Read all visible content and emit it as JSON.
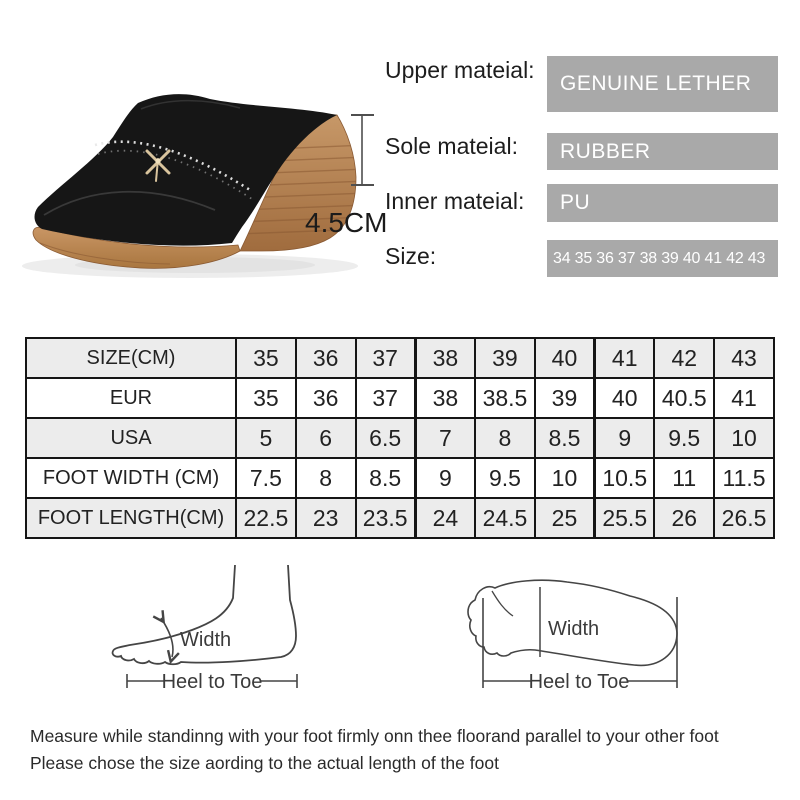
{
  "product_photo": {
    "description": "black wedge slipper with rhinestone ornament",
    "heel_height_label": "4.5CM"
  },
  "specs": {
    "items": [
      {
        "label": "Upper mateial:",
        "value": "GENUINE LETHER"
      },
      {
        "label": "Sole mateial:",
        "value": "RUBBER"
      },
      {
        "label": "Inner mateial:",
        "value": "PU"
      },
      {
        "label": "Size:",
        "value": "34 35 36 37 38 39 40 41 42 43"
      }
    ],
    "box_bg": "#a9a9a9",
    "box_text_color": "#ffffff"
  },
  "size_table": {
    "rows": [
      {
        "label": "SIZE(CM)",
        "values": [
          "35",
          "36",
          "37",
          "38",
          "39",
          "40",
          "41",
          "42",
          "43"
        ]
      },
      {
        "label": "EUR",
        "values": [
          "35",
          "36",
          "37",
          "38",
          "38.5",
          "39",
          "40",
          "40.5",
          "41"
        ]
      },
      {
        "label": "USA",
        "values": [
          "5",
          "6",
          "6.5",
          "7",
          "8",
          "8.5",
          "9",
          "9.5",
          "10"
        ]
      },
      {
        "label": "FOOT WIDTH (CM)",
        "values": [
          "7.5",
          "8",
          "8.5",
          "9",
          "9.5",
          "10",
          "10.5",
          "11",
          "11.5"
        ]
      },
      {
        "label": "FOOT LENGTH(CM)",
        "values": [
          "22.5",
          "23",
          "23.5",
          "24",
          "24.5",
          "25",
          "25.5",
          "26",
          "26.5"
        ]
      }
    ],
    "alt_row_bg": "#ececec",
    "border_color": "#151515",
    "group_separators_before": [
      "38",
      "41"
    ]
  },
  "diagrams": {
    "side_view": {
      "width_label": "Width",
      "length_label": "Heel to Toe"
    },
    "footprint": {
      "width_label": "Width",
      "length_label": "Heel to Toe"
    }
  },
  "notes": {
    "line1": "Measure while standinng with your foot firmly onn thee floorand parallel to your other foot",
    "line2": "Please chose the size aording to the actual length of the foot"
  },
  "colors": {
    "wedge_brown": "#b5824f",
    "outsole_tan": "#c08a5a",
    "upper_black": "#161616",
    "line_art": "#454545"
  }
}
